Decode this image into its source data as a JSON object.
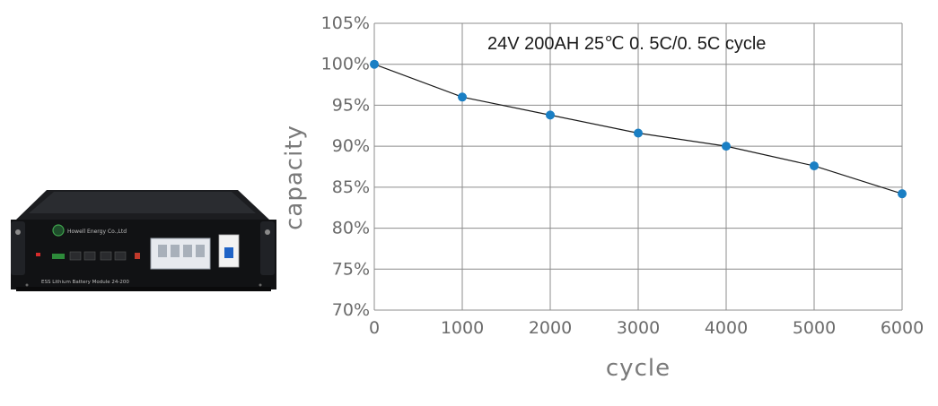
{
  "product": {
    "brand_text": "Howell Energy Co.,Ltd",
    "model_text": "ESS Lithium Battery Module 24-200"
  },
  "chart_data": {
    "type": "line",
    "title": "24V 200AH 25℃  0. 5C/0. 5C  cycle",
    "xlabel": "cycle",
    "ylabel": "capacity",
    "x": [
      0,
      1000,
      2000,
      3000,
      4000,
      5000,
      6000
    ],
    "series": [
      {
        "values": [
          100,
          96,
          93.8,
          91.6,
          90,
          87.6,
          84.2
        ]
      }
    ],
    "xlim": [
      0,
      6000
    ],
    "ylim": [
      70,
      105
    ],
    "x_ticks": [
      "0",
      "1000",
      "2000",
      "3000",
      "4000",
      "5000",
      "6000"
    ],
    "y_ticks": [
      "70%",
      "75%",
      "80%",
      "85%",
      "90%",
      "95%",
      "100%",
      "105%"
    ],
    "grid": true,
    "line_color": "#1a1a1a",
    "marker_color": "#1a7fc4"
  }
}
